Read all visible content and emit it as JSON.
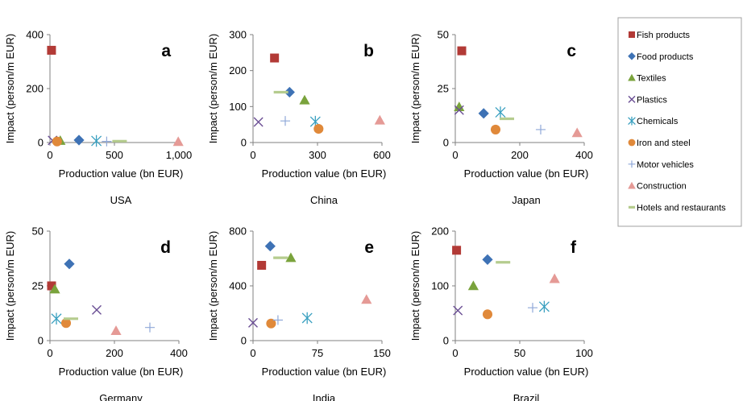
{
  "legend": {
    "entries": [
      {
        "name": "Fish products",
        "marker": "square",
        "color": "#b23a36"
      },
      {
        "name": "Food products",
        "marker": "diamond",
        "color": "#3e72b5"
      },
      {
        "name": "Textiles",
        "marker": "triangle",
        "color": "#7aa33c"
      },
      {
        "name": "Plastics",
        "marker": "x",
        "color": "#6a4e94"
      },
      {
        "name": "Chemicals",
        "marker": "star",
        "color": "#3aa0c0"
      },
      {
        "name": "Iron and steel",
        "marker": "circle",
        "color": "#e0893a"
      },
      {
        "name": "Motor vehicles",
        "marker": "plus",
        "color": "#8fa8d8"
      },
      {
        "name": "Construction",
        "marker": "triangle",
        "color": "#e59a96"
      },
      {
        "name": "Hotels and restaurants",
        "marker": "dash",
        "color": "#b5cc8e"
      }
    ]
  },
  "chart_data": [
    {
      "type": "scatter",
      "letter": "a",
      "country": "USA",
      "xlabel": "Production value (bn EUR)",
      "ylabel": "Impact (person/m EUR)",
      "xlim": [
        0,
        1000
      ],
      "xticks": [
        0,
        500,
        1000
      ],
      "xtick_labels": [
        "0",
        "500",
        "1,000"
      ],
      "ylim": [
        0,
        400
      ],
      "yticks": [
        0,
        200,
        400
      ],
      "ytick_labels": [
        "0",
        "200",
        "400"
      ],
      "points": [
        {
          "series": "Fish products",
          "x": 12,
          "y": 342
        },
        {
          "series": "Food products",
          "x": 225,
          "y": 9
        },
        {
          "series": "Textiles",
          "x": 80,
          "y": 7
        },
        {
          "series": "Plastics",
          "x": 20,
          "y": 8
        },
        {
          "series": "Chemicals",
          "x": 360,
          "y": 6
        },
        {
          "series": "Iron and steel",
          "x": 55,
          "y": 4
        },
        {
          "series": "Motor vehicles",
          "x": 440,
          "y": 4
        },
        {
          "series": "Construction",
          "x": 995,
          "y": 3
        },
        {
          "series": "Hotels and restaurants",
          "x": 540,
          "y": 5
        }
      ]
    },
    {
      "type": "scatter",
      "letter": "b",
      "country": "China",
      "xlabel": "Production value (bn EUR)",
      "ylabel": "Impact (person/m EUR)",
      "xlim": [
        0,
        600
      ],
      "xticks": [
        0,
        300,
        600
      ],
      "xtick_labels": [
        "0",
        "300",
        "600"
      ],
      "ylim": [
        0,
        300
      ],
      "yticks": [
        0,
        100,
        200,
        300
      ],
      "ytick_labels": [
        "0",
        "100",
        "200",
        "300"
      ],
      "points": [
        {
          "series": "Fish products",
          "x": 100,
          "y": 235
        },
        {
          "series": "Food products",
          "x": 170,
          "y": 140
        },
        {
          "series": "Textiles",
          "x": 240,
          "y": 118
        },
        {
          "series": "Plastics",
          "x": 25,
          "y": 57
        },
        {
          "series": "Chemicals",
          "x": 290,
          "y": 58
        },
        {
          "series": "Iron and steel",
          "x": 305,
          "y": 38
        },
        {
          "series": "Motor vehicles",
          "x": 150,
          "y": 60
        },
        {
          "series": "Construction",
          "x": 590,
          "y": 62
        },
        {
          "series": "Hotels and restaurants",
          "x": 130,
          "y": 140
        }
      ]
    },
    {
      "type": "scatter",
      "letter": "c",
      "country": "Japan",
      "xlabel": "Production value (bn EUR)",
      "ylabel": "Impact (person/m EUR)",
      "xlim": [
        0,
        400
      ],
      "xticks": [
        0,
        200,
        400
      ],
      "xtick_labels": [
        "0",
        "200",
        "400"
      ],
      "ylim": [
        0,
        50
      ],
      "yticks": [
        0,
        25,
        50
      ],
      "ytick_labels": [
        "0",
        "25",
        "50"
      ],
      "points": [
        {
          "series": "Fish products",
          "x": 20,
          "y": 42.5
        },
        {
          "series": "Food products",
          "x": 88,
          "y": 13.5
        },
        {
          "series": "Textiles",
          "x": 12,
          "y": 16.5
        },
        {
          "series": "Plastics",
          "x": 12,
          "y": 15
        },
        {
          "series": "Chemicals",
          "x": 140,
          "y": 14
        },
        {
          "series": "Iron and steel",
          "x": 125,
          "y": 6
        },
        {
          "series": "Motor vehicles",
          "x": 265,
          "y": 6
        },
        {
          "series": "Construction",
          "x": 378,
          "y": 4.5
        },
        {
          "series": "Hotels and restaurants",
          "x": 160,
          "y": 11
        }
      ]
    },
    {
      "type": "scatter",
      "letter": "d",
      "country": "Germany",
      "xlabel": "Production value (bn EUR)",
      "ylabel": "Impact (person/m EUR)",
      "xlim": [
        0,
        400
      ],
      "xticks": [
        0,
        200,
        400
      ],
      "xtick_labels": [
        "0",
        "200",
        "400"
      ],
      "ylim": [
        0,
        50
      ],
      "yticks": [
        0,
        25,
        50
      ],
      "ytick_labels": [
        "0",
        "25",
        "50"
      ],
      "points": [
        {
          "series": "Fish products",
          "x": 5,
          "y": 25
        },
        {
          "series": "Food products",
          "x": 60,
          "y": 35
        },
        {
          "series": "Textiles",
          "x": 15,
          "y": 23.5
        },
        {
          "series": "Plastics",
          "x": 145,
          "y": 14
        },
        {
          "series": "Chemicals",
          "x": 20,
          "y": 10
        },
        {
          "series": "Iron and steel",
          "x": 50,
          "y": 8
        },
        {
          "series": "Motor vehicles",
          "x": 310,
          "y": 6
        },
        {
          "series": "Construction",
          "x": 205,
          "y": 4.5
        },
        {
          "series": "Hotels and restaurants",
          "x": 65,
          "y": 10
        }
      ]
    },
    {
      "type": "scatter",
      "letter": "e",
      "country": "India",
      "xlabel": "Production value (bn EUR)",
      "ylabel": "Impact (person/m EUR)",
      "xlim": [
        0,
        150
      ],
      "xticks": [
        0,
        75,
        150
      ],
      "xtick_labels": [
        "0",
        "75",
        "150"
      ],
      "ylim": [
        0,
        800
      ],
      "yticks": [
        0,
        400,
        800
      ],
      "ytick_labels": [
        "0",
        "400",
        "800"
      ],
      "points": [
        {
          "series": "Fish products",
          "x": 10,
          "y": 550
        },
        {
          "series": "Food products",
          "x": 20,
          "y": 690
        },
        {
          "series": "Textiles",
          "x": 44,
          "y": 605
        },
        {
          "series": "Plastics",
          "x": 0,
          "y": 130
        },
        {
          "series": "Chemicals",
          "x": 63,
          "y": 165
        },
        {
          "series": "Iron and steel",
          "x": 21,
          "y": 125
        },
        {
          "series": "Motor vehicles",
          "x": 29,
          "y": 150
        },
        {
          "series": "Construction",
          "x": 132,
          "y": 300
        },
        {
          "series": "Hotels and restaurants",
          "x": 32,
          "y": 605
        }
      ]
    },
    {
      "type": "scatter",
      "letter": "f",
      "country": "Brazil",
      "xlabel": "Production value (bn EUR)",
      "ylabel": "Impact (person/m EUR)",
      "xlim": [
        0,
        100
      ],
      "xticks": [
        0,
        50,
        100
      ],
      "xtick_labels": [
        "0",
        "50",
        "100"
      ],
      "ylim": [
        0,
        200
      ],
      "yticks": [
        0,
        100,
        200
      ],
      "ytick_labels": [
        "0",
        "100",
        "200"
      ],
      "points": [
        {
          "series": "Fish products",
          "x": 1,
          "y": 165
        },
        {
          "series": "Food products",
          "x": 25,
          "y": 148
        },
        {
          "series": "Textiles",
          "x": 14,
          "y": 100
        },
        {
          "series": "Plastics",
          "x": 2,
          "y": 55
        },
        {
          "series": "Chemicals",
          "x": 69,
          "y": 62
        },
        {
          "series": "Iron and steel",
          "x": 25,
          "y": 48
        },
        {
          "series": "Motor vehicles",
          "x": 60,
          "y": 60
        },
        {
          "series": "Construction",
          "x": 77,
          "y": 113
        },
        {
          "series": "Hotels and restaurants",
          "x": 37,
          "y": 143
        }
      ]
    }
  ]
}
